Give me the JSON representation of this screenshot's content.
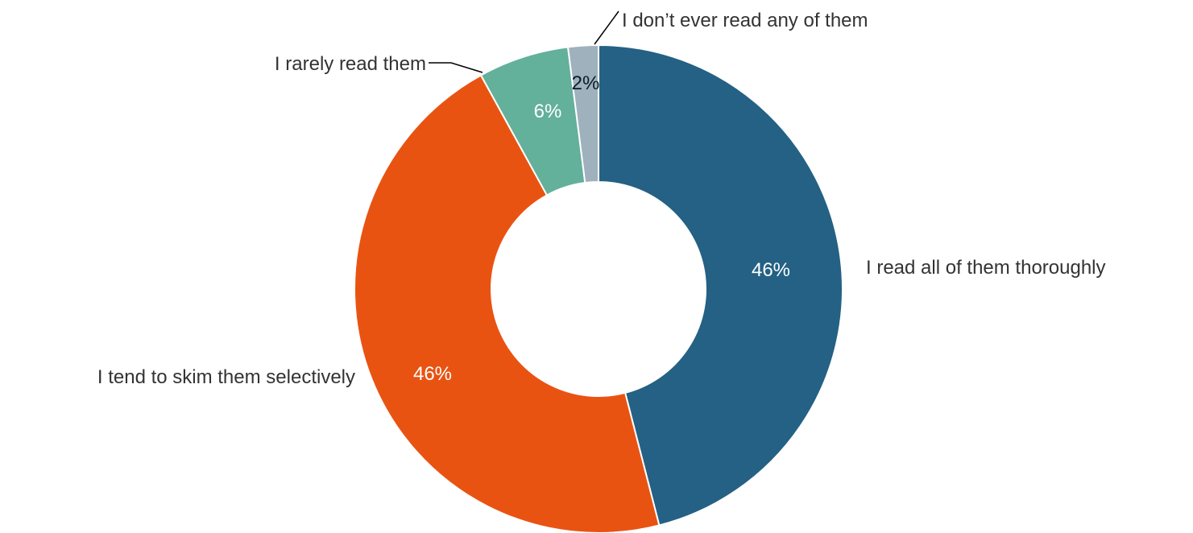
{
  "chart_data": {
    "type": "pie",
    "donut": true,
    "categories": [
      "I read all of them thoroughly",
      "I tend to skim them selectively",
      "I rarely read them",
      "I don’t ever read any of them"
    ],
    "values": [
      46,
      46,
      6,
      2
    ],
    "value_labels": [
      "46%",
      "46%",
      "6%",
      "2%"
    ],
    "colors": [
      "#246184",
      "#e95312",
      "#63b09b",
      "#9fb1bc"
    ],
    "label_colors": [
      "#ffffff",
      "#ffffff",
      "#ffffff",
      "#0d1b2a"
    ],
    "title": "",
    "legend": "none"
  }
}
